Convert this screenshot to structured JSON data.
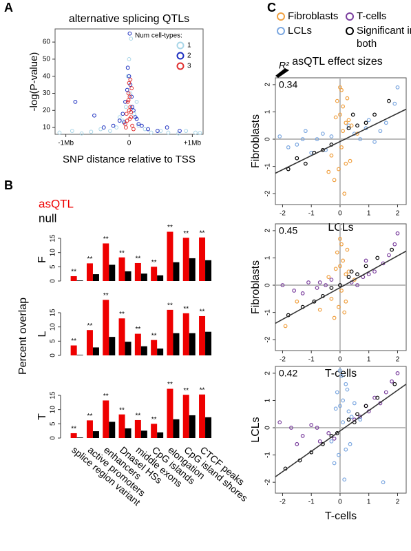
{
  "chart_data": [
    {
      "type": "scatter",
      "panel_label": "A",
      "title": "alternative splicing QTLs",
      "xlabel": "SNP distance relative to TSS",
      "ylabel": "-log(P-value)",
      "legend_title": "Num cell-types:",
      "xlim": [
        -1.17,
        1.17
      ],
      "ylim": [
        6,
        67.7
      ],
      "xticks": [
        {
          "value": -1,
          "label": "-1Mb"
        },
        0,
        {
          "value": 1,
          "label": "+1Mb"
        }
      ],
      "yticks": [
        10,
        20,
        30,
        40,
        50,
        60
      ],
      "series": [
        {
          "name": "1",
          "color": "#a9d6e8",
          "x": [
            -1.1,
            -0.9,
            -0.75,
            -0.6,
            -0.45,
            -0.3,
            -0.2,
            -0.1,
            -0.05,
            0.02,
            0.08,
            0.15,
            0.25,
            0.35,
            0.5,
            0.62,
            0.78,
            0.9,
            1.05,
            1.12,
            -0.02,
            0.03,
            -0.15,
            0.12,
            0.0
          ],
          "y": [
            7,
            8,
            6.5,
            7.5,
            9,
            8,
            10,
            14,
            22,
            30,
            18,
            11,
            9,
            7,
            8,
            7,
            6.5,
            8,
            7,
            6.8,
            40,
            62,
            16,
            25,
            50
          ]
        },
        {
          "name": "2",
          "color": "#1c2fc0",
          "x": [
            -0.85,
            -0.55,
            -0.4,
            -0.25,
            -0.15,
            -0.1,
            -0.06,
            -0.03,
            0.0,
            0.02,
            0.04,
            0.07,
            0.1,
            0.15,
            0.2,
            0.3,
            0.45,
            0.6,
            0.8,
            -0.02,
            0.01,
            0.05,
            -0.08,
            0.12
          ],
          "y": [
            25,
            17,
            10,
            11,
            14,
            18,
            25,
            32,
            40,
            35,
            28,
            20,
            16,
            12,
            11,
            9,
            8,
            10,
            8,
            45,
            65,
            22,
            13,
            15
          ]
        },
        {
          "name": "3",
          "color": "#e03030",
          "x": [
            -0.06,
            -0.04,
            -0.02,
            -0.01,
            0.0,
            0.01,
            0.02,
            0.03,
            0.05,
            0.07,
            -0.03,
            0.0,
            0.04,
            -0.05,
            0.02,
            0.01,
            -0.01,
            0.03
          ],
          "y": [
            12,
            18,
            25,
            30,
            36,
            28,
            22,
            16,
            11,
            9,
            14,
            20,
            33,
            10,
            38,
            15,
            26,
            19
          ]
        }
      ]
    },
    {
      "type": "bar",
      "panel_label": "B",
      "ylabel": "Percent overlap",
      "categories": [
        "splice region variant",
        "active promoters",
        "enhancers",
        "DnaseI HSs",
        "middle exons",
        "CpG islands",
        "elongation",
        "CpG island shores",
        "CTCF peaks"
      ],
      "series": [
        {
          "name": "asQTL",
          "color": "#ee0000"
        },
        {
          "name": "null",
          "color": "#000000"
        }
      ],
      "ylim": [
        0,
        15
      ],
      "yticks": [
        0,
        5,
        10,
        15
      ],
      "subplots": [
        {
          "label": "F",
          "values": [
            [
              1.7,
              6.2,
              13.2,
              8.3,
              6.3,
              5.0,
              17.3,
              15.2,
              15.3
            ],
            [
              0.2,
              2.4,
              5.7,
              3.4,
              2.6,
              2.0,
              6.6,
              8.0,
              7.3
            ]
          ],
          "annotations": [
            "**",
            "**",
            "**",
            "**",
            "**",
            "**",
            "**",
            "**",
            "**"
          ]
        },
        {
          "label": "L",
          "values": [
            [
              3.5,
              8.9,
              19.5,
              13.0,
              7.6,
              5.4,
              16.0,
              14.8,
              13.8
            ],
            [
              0.2,
              2.8,
              6.5,
              4.8,
              3.2,
              2.4,
              7.8,
              7.8,
              8.3
            ]
          ],
          "annotations": [
            "**",
            "**",
            "**",
            "**",
            "**",
            "**",
            "**",
            "**",
            "**"
          ]
        },
        {
          "label": "T",
          "values": [
            [
              1.7,
              6.2,
              13.2,
              8.3,
              6.3,
              5.0,
              17.3,
              15.2,
              15.3
            ],
            [
              0.2,
              2.4,
              5.7,
              3.4,
              2.6,
              2.0,
              6.6,
              8.0,
              7.3
            ]
          ],
          "annotations": [
            "**",
            "**",
            "**",
            "**",
            "**",
            "**",
            "**",
            "**",
            "**"
          ]
        }
      ]
    },
    {
      "type": "scatter",
      "panel_label": "C",
      "title": "asQTL effect sizes",
      "r2_label": "R²",
      "legend": [
        {
          "name": "Fibroblasts",
          "color": "#f0a040"
        },
        {
          "name": "T-cells",
          "color": "#7b3f9e"
        },
        {
          "name": "LCLs",
          "color": "#7ba7e0"
        },
        {
          "name": "Significant in both",
          "color": "#000000"
        }
      ],
      "xlim": [
        -2.25,
        2.3
      ],
      "ylim": [
        -2.4,
        2.25
      ],
      "xticks": [
        -2,
        -1,
        0,
        1,
        2
      ],
      "yticks": [
        -2,
        -1,
        0,
        1,
        2
      ],
      "subplots": [
        {
          "r2": 0.34,
          "xlabel": "LCLs",
          "ylabel": "Fibroblasts",
          "fit_x": [
            -2.25,
            2.3
          ],
          "fit_y": [
            -1.25,
            1.1
          ],
          "series": [
            {
              "name": "LCLs",
              "x": [
                -2.1,
                -1.5,
                -1.2,
                -0.8,
                -0.5,
                0.5,
                0.9,
                1.2,
                1.6,
                2.0,
                -1.0,
                0.7,
                1.4,
                -1.8,
                -0.3,
                0.3,
                1.9,
                -0.6,
                1.0,
                -1.3
              ],
              "y": [
                0.1,
                -0.2,
                0.3,
                0.0,
                -0.4,
                0.2,
                0.4,
                -0.1,
                0.6,
                1.9,
                -0.5,
                0.0,
                0.3,
                -0.3,
                0.1,
                0.5,
                1.3,
                0.2,
                0.7,
                0.0
              ]
            },
            {
              "name": "Fibroblasts",
              "x": [
                0.05,
                -0.1,
                0.1,
                0.2,
                -0.2,
                0.0,
                0.3,
                0.15,
                -0.05,
                0.25,
                0.4,
                -0.3,
                0.1,
                0.05,
                -0.15,
                0.6,
                0.35,
                0.0,
                -0.4,
                0.2
              ],
              "y": [
                1.8,
                1.4,
                1.2,
                -0.9,
                -1.5,
                0.9,
                0.7,
                -2.0,
                -1.1,
                1.5,
                0.5,
                -0.6,
                0.3,
                -0.3,
                0.8,
                0.2,
                -0.8,
                1.9,
                -1.2,
                0.6
              ]
            },
            {
              "name": "Significant in both",
              "x": [
                -1.8,
                -1.2,
                -0.9,
                -0.6,
                -0.3,
                0.3,
                0.6,
                0.9,
                1.2,
                1.7,
                -1.5,
                0.45
              ],
              "y": [
                -1.1,
                -0.9,
                -0.5,
                -0.4,
                -0.2,
                0.4,
                0.5,
                0.6,
                0.9,
                1.4,
                -0.7,
                0.9
              ]
            }
          ]
        },
        {
          "r2": 0.45,
          "xlabel": "T-cells",
          "ylabel": "Fibroblasts",
          "fit_x": [
            -2.25,
            2.3
          ],
          "fit_y": [
            -1.4,
            1.25
          ],
          "series": [
            {
              "name": "Fibroblasts",
              "x": [
                0.05,
                -0.1,
                0.1,
                0.2,
                -0.2,
                0.0,
                0.3,
                0.15,
                -0.05,
                0.25,
                -0.4,
                -0.7,
                -1.5,
                0.05,
                -0.15,
                0.5,
                -1.9,
                0.0,
                -0.3,
                0.2
              ],
              "y": [
                1.5,
                1.2,
                0.9,
                -0.6,
                -1.2,
                0.7,
                0.5,
                -1.0,
                -0.8,
                1.3,
                0.3,
                -0.9,
                -0.6,
                -0.2,
                0.6,
                0.2,
                -1.5,
                1.7,
                -0.5,
                0.4
              ]
            },
            {
              "name": "T-cells",
              "x": [
                -2.0,
                -1.6,
                -1.1,
                -0.8,
                -0.5,
                0.4,
                0.8,
                1.2,
                1.5,
                2.0,
                -1.3,
                0.6,
                1.7,
                -0.3,
                0.9,
                1.9,
                -0.7,
                1.0
              ],
              "y": [
                0.0,
                -0.2,
                0.1,
                -0.1,
                0.0,
                0.1,
                0.3,
                0.5,
                0.8,
                1.9,
                -0.3,
                0.0,
                1.1,
                0.2,
                0.9,
                1.5,
                0.1,
                0.4
              ]
            },
            {
              "name": "Significant in both",
              "x": [
                -1.8,
                -1.3,
                -0.9,
                -0.6,
                -0.3,
                0.3,
                0.6,
                0.9,
                1.3,
                1.8,
                0.0,
                0.4
              ],
              "y": [
                -1.1,
                -0.8,
                -0.6,
                -0.4,
                -0.1,
                0.3,
                0.4,
                0.7,
                1.0,
                1.3,
                0.0,
                0.5
              ]
            }
          ]
        },
        {
          "r2": 0.42,
          "xlabel": "T-cells",
          "ylabel": "LCLs",
          "fit_x": [
            -2.25,
            2.3
          ],
          "fit_y": [
            -1.8,
            1.6
          ],
          "series": [
            {
              "name": "T-cells",
              "x": [
                -2.1,
                -1.7,
                -1.3,
                -1.0,
                -0.7,
                -0.4,
                0.5,
                0.9,
                1.2,
                1.6,
                2.0,
                -1.5,
                0.7,
                1.8,
                -0.8,
                1.0,
                -0.2,
                1.4
              ],
              "y": [
                0.2,
                0.0,
                -0.3,
                0.1,
                -0.5,
                -0.2,
                0.3,
                0.8,
                1.1,
                1.3,
                2.0,
                -0.6,
                0.4,
                1.7,
                0.0,
                0.6,
                -0.4,
                0.9
              ]
            },
            {
              "name": "LCLs",
              "x": [
                0.05,
                -0.1,
                0.1,
                0.2,
                -0.2,
                0.0,
                0.3,
                0.15,
                -0.05,
                0.25,
                0.4,
                -0.3,
                0.1,
                0.5,
                -0.15,
                0.7,
                0.35,
                0.0,
                1.5,
                0.2
              ],
              "y": [
                1.9,
                1.3,
                1.0,
                -0.8,
                -1.3,
                0.8,
                0.6,
                -1.9,
                -1.0,
                1.4,
                0.4,
                -0.5,
                0.2,
                0.9,
                0.7,
                0.3,
                -0.6,
                2.1,
                -2.0,
                1.6
              ]
            },
            {
              "name": "Significant in both",
              "x": [
                -1.9,
                -1.4,
                -1.0,
                -0.6,
                -0.3,
                0.3,
                0.6,
                0.9,
                1.3,
                1.9,
                -0.1,
                0.5
              ],
              "y": [
                -1.5,
                -1.2,
                -0.9,
                -0.6,
                -0.3,
                0.3,
                0.5,
                0.8,
                1.1,
                1.6,
                -0.2,
                0.2
              ]
            }
          ]
        }
      ]
    }
  ]
}
